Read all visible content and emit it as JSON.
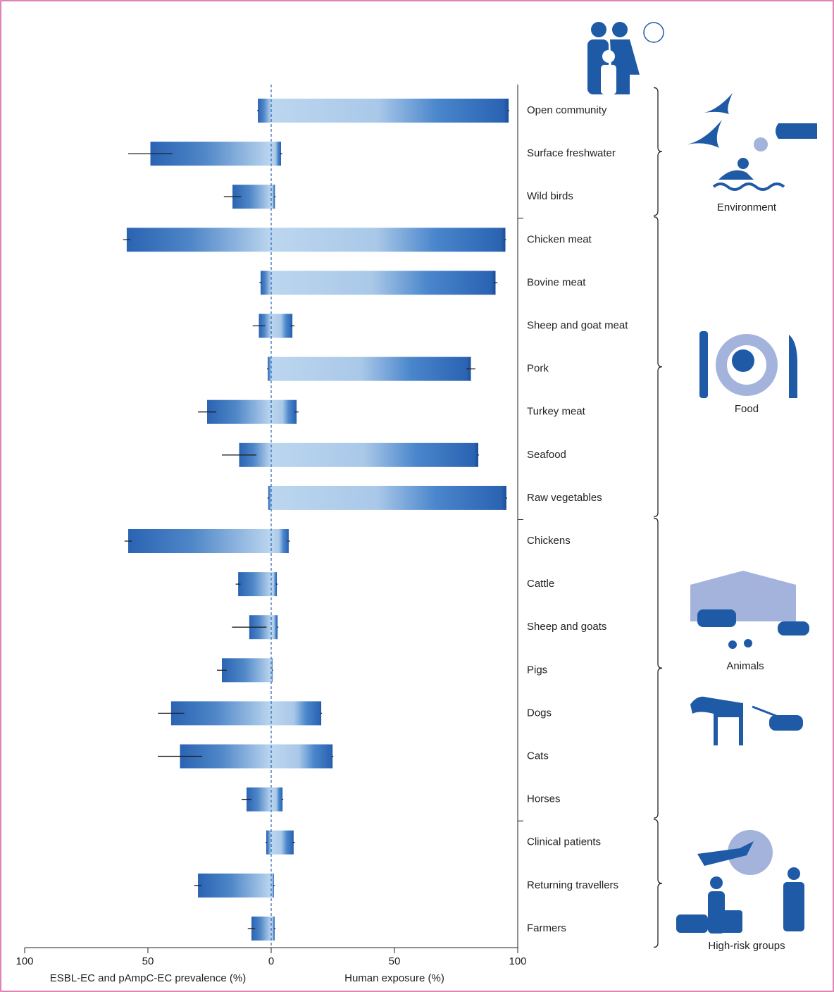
{
  "chart_data": {
    "type": "diverging_bar",
    "categories": [
      "Open community",
      "Surface freshwater",
      "Wild birds",
      "Chicken meat",
      "Bovine meat",
      "Sheep and goat meat",
      "Pork",
      "Turkey meat",
      "Seafood",
      "Raw vegetables",
      "Chickens",
      "Cattle",
      "Sheep and goats",
      "Pigs",
      "Dogs",
      "Cats",
      "Horses",
      "Clinical patients",
      "Returning travellers",
      "Farmers"
    ],
    "left": {
      "label": "ESBL-EC and pAmpC-EC prevalence (%)",
      "color": "#2f6bb8",
      "values": [
        5.4,
        49,
        15.7,
        58.6,
        4.3,
        5,
        1.4,
        26,
        13,
        1.2,
        58,
        13.4,
        8.9,
        20,
        40.6,
        37,
        10,
        2,
        29.7,
        8
      ],
      "errors": [
        0.3,
        9,
        3.5,
        1.5,
        0.5,
        2.5,
        0.3,
        3.7,
        7,
        0.3,
        1.5,
        1,
        7,
        2,
        5.3,
        9,
        2,
        0.3,
        1.5,
        1.5
      ],
      "xlim": [
        100,
        0
      ],
      "xticks": [
        100,
        50
      ]
    },
    "right": {
      "label": "Human exposure (%)",
      "color": "#2f6bb8",
      "values": [
        96.3,
        4,
        1.5,
        95,
        91,
        8.6,
        81,
        10.3,
        84,
        95.4,
        7.1,
        2.3,
        2.6,
        0.6,
        20.3,
        24.9,
        4.6,
        9.1,
        1.1,
        1.4
      ],
      "errors": [
        0.3,
        0.5,
        0.3,
        0.3,
        0.8,
        0.8,
        1.8,
        0.8,
        0.3,
        0.3,
        0.5,
        0.3,
        0.3,
        0.2,
        0.3,
        0.3,
        0.3,
        0.5,
        0.3,
        0.3
      ],
      "xlim": [
        0,
        100
      ],
      "xticks": [
        0,
        50,
        100
      ]
    },
    "groups": [
      {
        "label": "Environment",
        "size": 3
      },
      {
        "label": "Food",
        "size": 7
      },
      {
        "label": "Animals",
        "size": 7
      },
      {
        "label": "High-risk groups",
        "size": 3
      }
    ]
  }
}
